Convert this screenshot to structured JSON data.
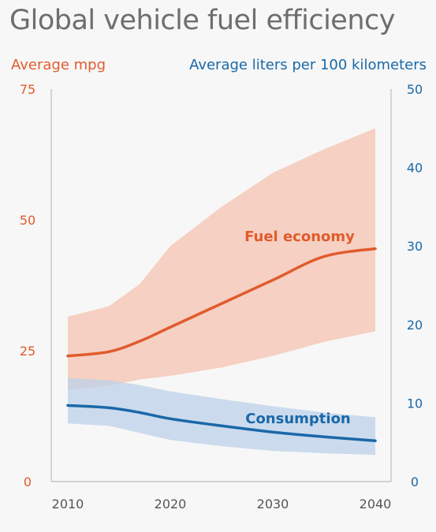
{
  "chart_data": {
    "type": "line",
    "title": "Global vehicle fuel efficiency",
    "y_left_label": "Average mpg",
    "y_right_label": "Average liters per 100 kilometers",
    "xlim": [
      2010,
      2040
    ],
    "ylim_left": [
      0,
      75
    ],
    "ylim_right": [
      0,
      50
    ],
    "x_ticks": [
      "2010",
      "2020",
      "2030",
      "2040"
    ],
    "y_left_ticks": [
      "0",
      "25",
      "50",
      "75"
    ],
    "y_right_ticks": [
      "0",
      "10",
      "20",
      "30",
      "40",
      "50"
    ],
    "grid": false,
    "series": [
      {
        "name": "Fuel economy",
        "axis": "left",
        "color": "#e15b2d",
        "band_color": "#f6c9b9",
        "x": [
          2010,
          2014,
          2017,
          2020,
          2025,
          2030,
          2035,
          2040
        ],
        "values": [
          24,
          24.8,
          26.8,
          29.5,
          34,
          38.5,
          43,
          44.5
        ],
        "lower": [
          17.5,
          18.3,
          19.5,
          20.2,
          21.8,
          24,
          26.7,
          28.7
        ],
        "upper": [
          31.5,
          33.5,
          37.7,
          45,
          52.5,
          59,
          63.5,
          67.5
        ]
      },
      {
        "name": "Consumption",
        "axis": "right",
        "color": "#1a68a8",
        "band_color": "#bcd2e9",
        "x": [
          2010,
          2014,
          2017,
          2020,
          2025,
          2030,
          2035,
          2040
        ],
        "values": [
          9.7,
          9.4,
          8.8,
          8,
          7.1,
          6.3,
          5.7,
          5.2
        ],
        "lower": [
          7.4,
          7.1,
          6.2,
          5.3,
          4.5,
          3.9,
          3.6,
          3.4
        ],
        "upper": [
          13.2,
          12.9,
          12.3,
          11.5,
          10.5,
          9.6,
          8.8,
          8.2
        ]
      }
    ]
  }
}
